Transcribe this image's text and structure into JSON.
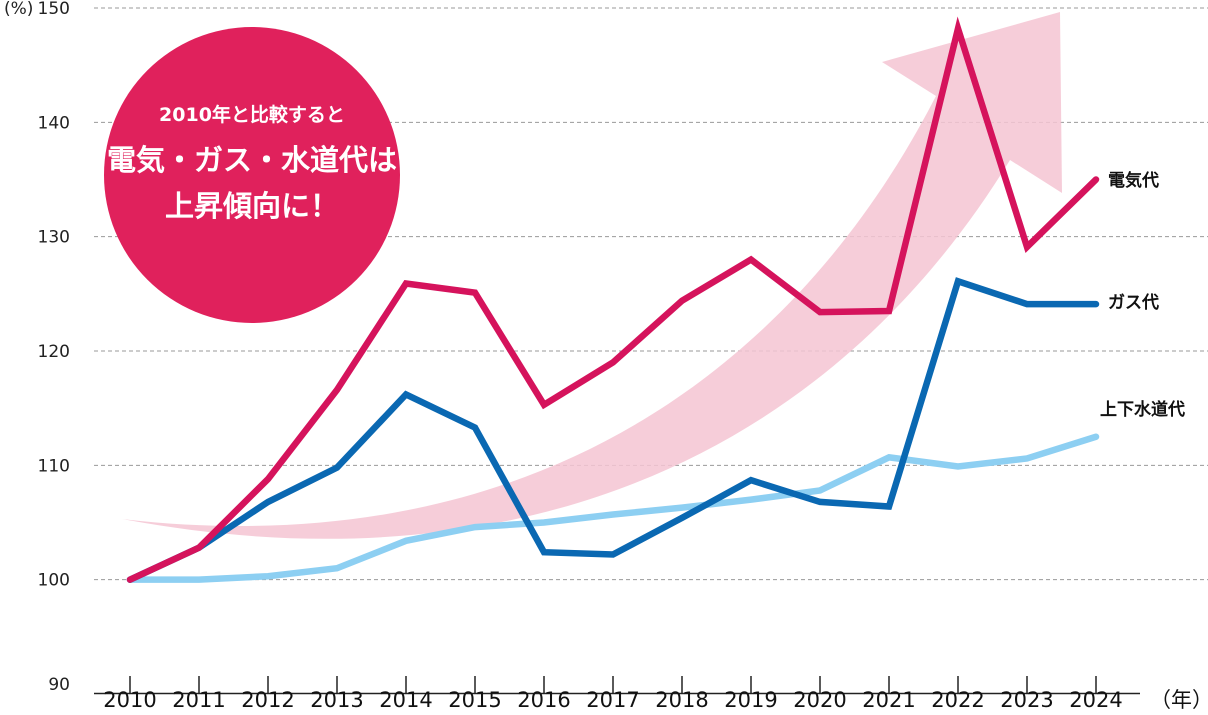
{
  "chart_data": {
    "type": "line",
    "y_unit": "(%)",
    "x_unit": "（年）",
    "ylim": [
      90,
      150
    ],
    "yticks": [
      90,
      100,
      110,
      120,
      130,
      140,
      150
    ],
    "grid": "horizontal-dashed",
    "categories": [
      "2010",
      "2011",
      "2012",
      "2013",
      "2014",
      "2015",
      "2016",
      "2017",
      "2018",
      "2019",
      "2020",
      "2021",
      "2022",
      "2023",
      "2024"
    ],
    "series": [
      {
        "name": "電気代",
        "color": "#D5135C",
        "values": [
          100,
          102.8,
          108.8,
          116.6,
          125.9,
          125.1,
          115.3,
          119.0,
          124.4,
          128.0,
          123.4,
          123.5,
          148.2,
          129.1,
          135.0
        ]
      },
      {
        "name": "ガス代",
        "color": "#0A68B2",
        "values": [
          100,
          102.8,
          106.8,
          109.8,
          116.2,
          113.3,
          102.4,
          102.2,
          105.4,
          108.7,
          106.8,
          106.4,
          126.1,
          124.1,
          124.1
        ]
      },
      {
        "name": "上下水道代",
        "color": "#8DCFF2",
        "values": [
          100,
          100,
          100.3,
          101.0,
          103.4,
          104.6,
          105.0,
          105.7,
          106.3,
          107.0,
          107.8,
          110.7,
          109.9,
          110.6,
          112.5
        ]
      }
    ],
    "annotation": {
      "line1": "2010年と比較すると",
      "line2": "電気・ガス・水道代は",
      "line3": "上昇傾向に！",
      "circle_color": "#E0215C",
      "trend_arrow_color": "#F4C4D2"
    }
  }
}
